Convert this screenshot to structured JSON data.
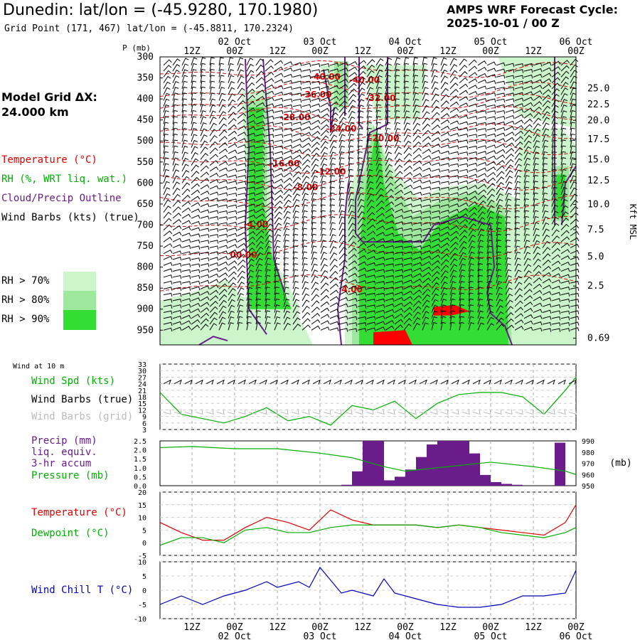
{
  "header": {
    "title": "Dunedin:  lat/lon = (-45.9280, 170.1980)",
    "subtitle": "Grid Point (171, 467) lat/lon = (-45.8811, 170.2324)",
    "cycle_line1": "AMPS WRF Forecast Cycle:",
    "cycle_line2": "2025-10-01 / 00  Z"
  },
  "sidebar": {
    "grid_dx_line1": "Model Grid ΔX:",
    "grid_dx_line2": " 24.000 km",
    "legend": {
      "temperature": "Temperature (°C)",
      "rh": "RH (%, WRT liq. wat.)",
      "cloud": "Cloud/Precip Outline",
      "wind": "Wind Barbs (kts) (true)"
    },
    "rh_levels": [
      {
        "label": "RH > 70%",
        "color": "#ccf5cc"
      },
      {
        "label": "RH > 80%",
        "color": "#9ee89e"
      },
      {
        "label": "RH > 90%",
        "color": "#33dd33"
      }
    ],
    "wind10m": "Wind at 10 m",
    "panel_labels": {
      "wind_spd": "Wind Spd (kts)",
      "wind_true": "Wind Barbs (true)",
      "wind_grid": "Wind Barbs (grid)",
      "precip1": "Precip (mm)",
      "precip2": "liq. equiv.",
      "precip3": "3-hr accum",
      "pressure": "Pressure (mb)",
      "temp": "Temperature (°C)",
      "dew": "Dewpoint (°C)",
      "chill": "Wind Chill T (°C)"
    }
  },
  "colors": {
    "temperature": "#e00000",
    "rh": "#00b000",
    "cloud": "#6a1d8a",
    "wind": "#000000",
    "wind_grid": "#bbbbbb",
    "precip": "#6a1d8a",
    "pressure": "#00b000",
    "dewpoint": "#00b000",
    "windchill": "#0000c0",
    "red_fill": "#ff0000"
  },
  "chart_data": [
    {
      "id": "time-height",
      "type": "heatmap",
      "ylabel_left": "P (mb)",
      "ylabel_right": "Kft MSL",
      "y_ticks_left": [
        300,
        350,
        400,
        450,
        500,
        550,
        600,
        650,
        700,
        750,
        800,
        850,
        900,
        950
      ],
      "y_ticks_right": [
        "25.0",
        "22.5",
        "20.0",
        "17.5",
        "15.0",
        "12.5",
        "10.0",
        "7.5",
        "5.0",
        "2.5",
        "0.69"
      ],
      "y_ticks_right_pressure": [
        375,
        413,
        451,
        496,
        544,
        594,
        651,
        711,
        775,
        845,
        969
      ],
      "x_ticks_hours": [
        12,
        24,
        36,
        48,
        60,
        72,
        84,
        96,
        108,
        120
      ],
      "x_ticks_labels": [
        "12Z",
        "00Z",
        "12Z",
        "00Z",
        "12Z",
        "00Z",
        "12Z",
        "00Z",
        "12Z",
        "00Z"
      ],
      "date_labels": [
        "02 Oct",
        "03 Oct",
        "04 Oct",
        "05 Oct",
        "06 Oct"
      ],
      "date_hours": [
        24,
        48,
        72,
        96,
        120
      ],
      "p_range": [
        300,
        985
      ],
      "hour_range": [
        3,
        120
      ],
      "temperature_contour_labels": [
        {
          "label": "-40.00",
          "hour": 49.5,
          "p": 347
        },
        {
          "label": "-40.00",
          "hour": 60.5,
          "p": 355
        },
        {
          "label": "-36.00",
          "hour": 47,
          "p": 390
        },
        {
          "label": "-32.00",
          "hour": 65,
          "p": 398
        },
        {
          "label": "-28.00",
          "hour": 41,
          "p": 444
        },
        {
          "label": "-24.00",
          "hour": 54,
          "p": 471
        },
        {
          "label": "-20.00",
          "hour": 66,
          "p": 494
        },
        {
          "label": "-16.00",
          "hour": 38,
          "p": 554
        },
        {
          "label": "-12.00",
          "hour": 51,
          "p": 573
        },
        {
          "label": "-8.00",
          "hour": 44,
          "p": 610
        },
        {
          "label": "-4.00",
          "hour": 30,
          "p": 698
        },
        {
          "label": "00.00",
          "hour": 26.5,
          "p": 771
        },
        {
          "label": "4.00",
          "hour": 57,
          "p": 853
        }
      ]
    },
    {
      "id": "wind-speed",
      "type": "line",
      "ylabel": "Wind Spd (kts)",
      "ylim": [
        3,
        33
      ],
      "y_ticks": [
        3,
        6,
        9,
        12,
        15,
        18,
        21,
        24,
        27,
        30,
        33
      ],
      "hours": [
        3,
        9,
        15,
        21,
        27,
        33,
        39,
        45,
        51,
        57,
        63,
        69,
        75,
        81,
        87,
        93,
        99,
        105,
        111,
        117,
        120
      ],
      "values": [
        20,
        10,
        8,
        6,
        9,
        13,
        7,
        9,
        5,
        14,
        12,
        16,
        8,
        15,
        19,
        20,
        20,
        18,
        10,
        21,
        27
      ]
    },
    {
      "id": "precip-pressure",
      "type": "bar",
      "ylabel_left": "Precip (mm)",
      "ylabel_right": "(mb)",
      "ylim_left": [
        0,
        2.5
      ],
      "y_ticks_left": [
        "0.0",
        "0.5",
        "1.0",
        "1.5",
        "2.0",
        "2.5"
      ],
      "ylim_right": [
        950,
        990
      ],
      "y_ticks_right": [
        950,
        960,
        970,
        980,
        990
      ],
      "precip_hours": [
        57,
        60,
        63,
        66,
        69,
        72,
        75,
        78,
        81,
        84,
        87,
        90,
        93,
        96,
        99,
        102,
        105,
        117
      ],
      "precip_values": [
        0.05,
        0.8,
        2.5,
        2.5,
        0.3,
        0.5,
        0.9,
        1.6,
        2.3,
        2.5,
        2.5,
        2.5,
        1.8,
        0.6,
        0.2,
        0.1,
        0.05,
        2.4
      ],
      "pressure_hours": [
        3,
        12,
        24,
        36,
        48,
        57,
        66,
        72,
        81,
        96,
        108,
        117,
        120
      ],
      "pressure_values": [
        984,
        985,
        983,
        983,
        979,
        975,
        967,
        963,
        966,
        971,
        967,
        963,
        960
      ]
    },
    {
      "id": "temp-dew",
      "type": "line",
      "ylim": [
        -5,
        20
      ],
      "y_ticks": [
        -5,
        0,
        5,
        10,
        15,
        20
      ],
      "series": [
        {
          "name": "Temperature",
          "hours": [
            3,
            9,
            15,
            21,
            27,
            33,
            39,
            45,
            51,
            57,
            63,
            69,
            75,
            81,
            87,
            93,
            99,
            105,
            111,
            117,
            120
          ],
          "values": [
            8,
            4,
            1,
            1,
            6,
            10,
            8,
            5,
            13,
            9,
            7,
            7,
            7,
            6,
            7,
            6,
            5,
            4,
            3,
            8,
            15
          ]
        },
        {
          "name": "Dewpoint",
          "hours": [
            3,
            9,
            15,
            21,
            27,
            33,
            39,
            45,
            51,
            57,
            63,
            69,
            75,
            81,
            87,
            93,
            99,
            105,
            111,
            117,
            120
          ],
          "values": [
            -1,
            2,
            2,
            0,
            5,
            6,
            4,
            4,
            6,
            7,
            7,
            7,
            7,
            6,
            7,
            6,
            4,
            3,
            2,
            4,
            6
          ]
        }
      ]
    },
    {
      "id": "wind-chill",
      "type": "line",
      "ylim": [
        -10,
        10
      ],
      "y_ticks": [
        -10,
        -5,
        0,
        5,
        10
      ],
      "hours": [
        3,
        9,
        15,
        21,
        27,
        33,
        36,
        42,
        45,
        48,
        54,
        57,
        63,
        66,
        69,
        75,
        81,
        87,
        93,
        99,
        105,
        111,
        117,
        120
      ],
      "values": [
        -5,
        -2,
        -5,
        -2,
        0,
        3,
        1,
        3,
        1,
        8,
        -1,
        0,
        -2,
        4,
        -1,
        -3,
        -5,
        -6,
        -6,
        -5,
        -2,
        -2,
        -1,
        7
      ]
    }
  ]
}
